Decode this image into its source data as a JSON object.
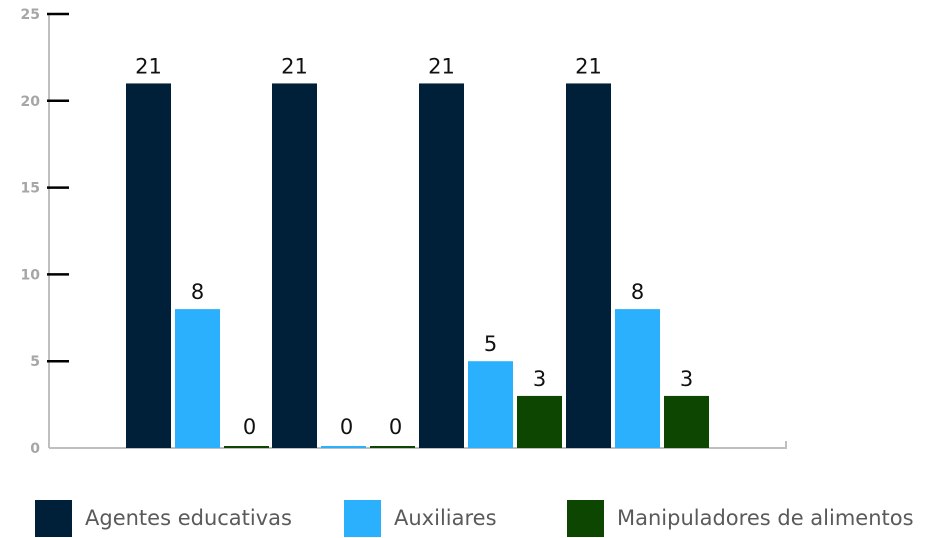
{
  "chart_data": {
    "type": "bar",
    "categories": [
      "",
      "",
      "",
      ""
    ],
    "series": [
      {
        "name": "Agentes educativas",
        "color": "#002039",
        "values": [
          21,
          21,
          21,
          21
        ]
      },
      {
        "name": "Auxiliares",
        "color": "#2ab0fc",
        "values": [
          8,
          0,
          5,
          8
        ]
      },
      {
        "name": "Manipuladores de alimentos",
        "color": "#0c4600",
        "values": [
          0,
          0,
          3,
          3
        ]
      }
    ],
    "y_ticks": [
      0,
      5,
      10,
      15,
      20,
      25
    ],
    "ylim": [
      0,
      25
    ],
    "legend_position": "bottom",
    "grid": false,
    "title": "",
    "xlabel": "",
    "ylabel": ""
  }
}
